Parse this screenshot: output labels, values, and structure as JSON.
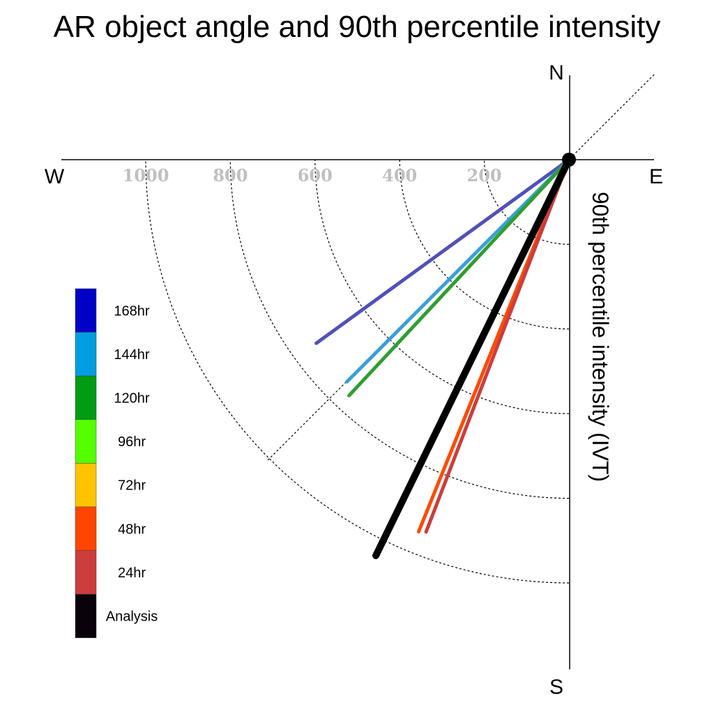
{
  "chart_data": {
    "type": "polar-vector",
    "title": "AR object angle and 90th percentile intensity",
    "radial_label": "90th percentile intensity (IVT)",
    "compass": {
      "north": "N",
      "south": "S",
      "east": "E",
      "west": "W"
    },
    "radial_ticks": [
      200,
      400,
      600,
      800,
      1000
    ],
    "radial_tick_labels": [
      "200",
      "400",
      "600",
      "800",
      "1000"
    ],
    "radial_max": 1000,
    "grid": true,
    "legend_position": "left",
    "series": [
      {
        "name": "168hr",
        "color": "#5151b8",
        "intensity": 738,
        "angle_from_south_deg": 54
      },
      {
        "name": "144hr",
        "color": "#3a9fd6",
        "intensity": 742,
        "angle_from_south_deg": 45
      },
      {
        "name": "120hr",
        "color": "#2f9e2f",
        "intensity": 762,
        "angle_from_south_deg": 43
      },
      {
        "name": "48hr",
        "color": "#ff4a00",
        "intensity": 948,
        "angle_from_south_deg": 22
      },
      {
        "name": "24hr",
        "color": "#cc3d3d",
        "intensity": 942,
        "angle_from_south_deg": 21
      },
      {
        "name": "Analysis",
        "color": "#000000",
        "intensity": 1041,
        "angle_from_south_deg": 26
      }
    ],
    "legend": [
      {
        "label": "168hr",
        "color": "#0000c8"
      },
      {
        "label": "144hr",
        "color": "#009ee0"
      },
      {
        "label": "120hr",
        "color": "#009c14"
      },
      {
        "label": "96hr",
        "color": "#55ff00"
      },
      {
        "label": "72hr",
        "color": "#ffc400"
      },
      {
        "label": "48hr",
        "color": "#ff4500"
      },
      {
        "label": "24hr",
        "color": "#cc3d3d"
      },
      {
        "label": "Analysis",
        "color": "#0a020a"
      }
    ]
  }
}
